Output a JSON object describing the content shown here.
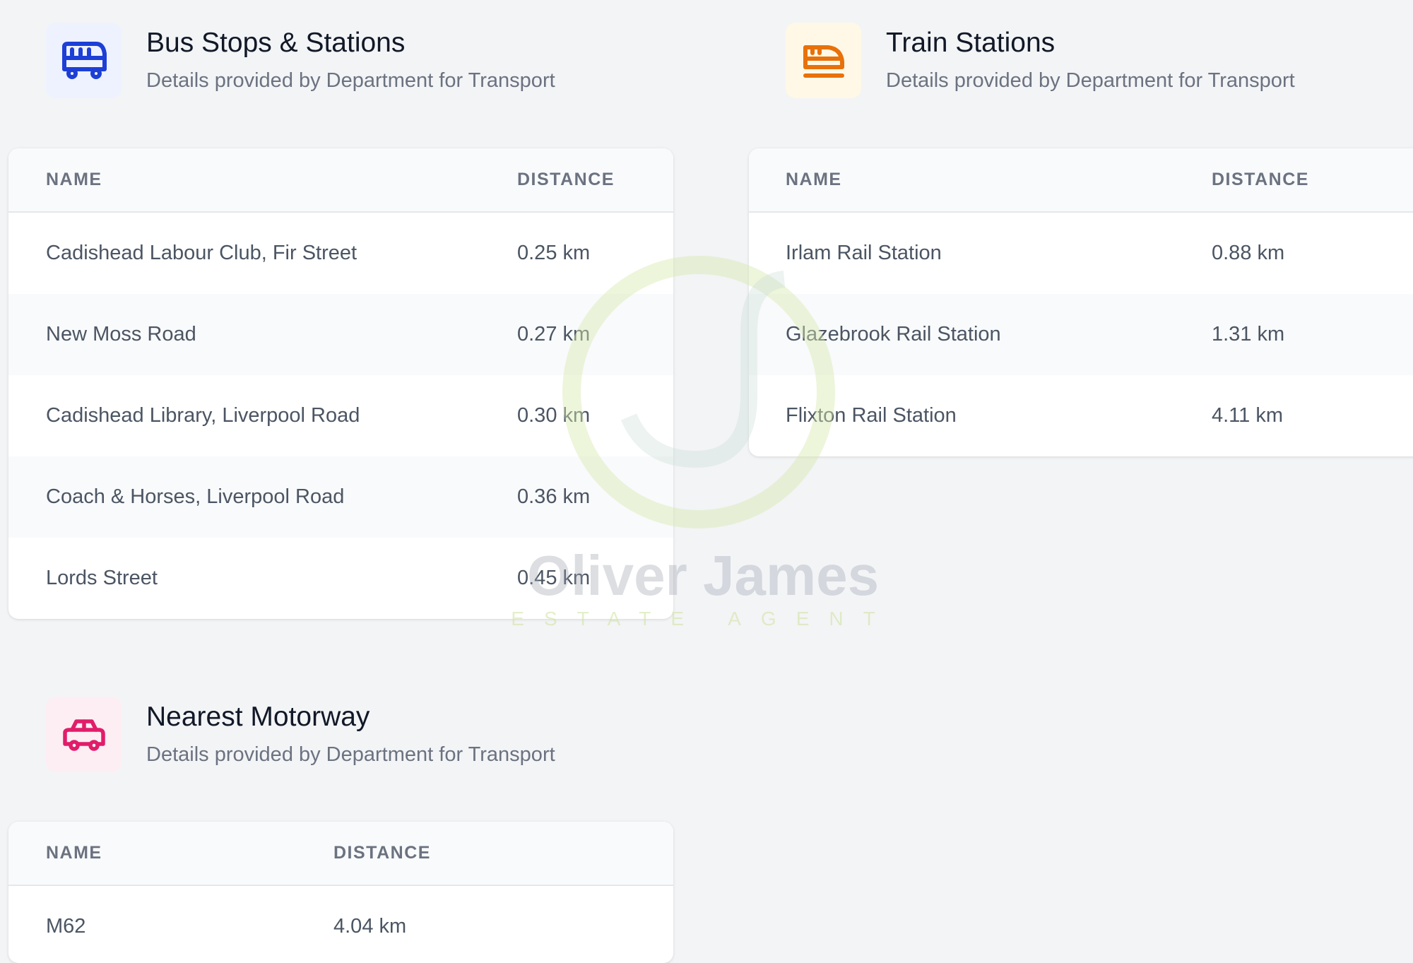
{
  "bus": {
    "icon": "bus-icon",
    "title": "Bus Stops & Stations",
    "subtitle": "Details provided by Department for Transport",
    "accent": "#1d3fd6",
    "icon_bg": "#eef2ff",
    "columns": [
      "NAME",
      "DISTANCE"
    ],
    "rows": [
      {
        "name": "Cadishead Labour Club, Fir Street",
        "distance": "0.25 km"
      },
      {
        "name": "New Moss Road",
        "distance": "0.27 km"
      },
      {
        "name": "Cadishead Library, Liverpool Road",
        "distance": "0.30 km"
      },
      {
        "name": "Coach & Horses, Liverpool Road",
        "distance": "0.36 km"
      },
      {
        "name": "Lords Street",
        "distance": "0.45 km"
      }
    ]
  },
  "train": {
    "icon": "train-icon",
    "title": "Train Stations",
    "subtitle": "Details provided by Department for Transport",
    "accent": "#e8710a",
    "icon_bg": "#fff8e6",
    "columns": [
      "NAME",
      "DISTANCE"
    ],
    "rows": [
      {
        "name": "Irlam Rail Station",
        "distance": "0.88 km"
      },
      {
        "name": "Glazebrook Rail Station",
        "distance": "1.31 km"
      },
      {
        "name": "Flixton Rail Station",
        "distance": "4.11 km"
      }
    ]
  },
  "motorway": {
    "icon": "car-icon",
    "title": "Nearest Motorway",
    "subtitle": "Details provided by Department for Transport",
    "accent": "#e11d6a",
    "icon_bg": "#fdeef4",
    "columns": [
      "NAME",
      "DISTANCE"
    ],
    "rows": [
      {
        "name": "M62",
        "distance": "4.04 km"
      }
    ]
  },
  "watermark": {
    "name": "Oliver James",
    "tagline": "ESTATE AGENT"
  }
}
